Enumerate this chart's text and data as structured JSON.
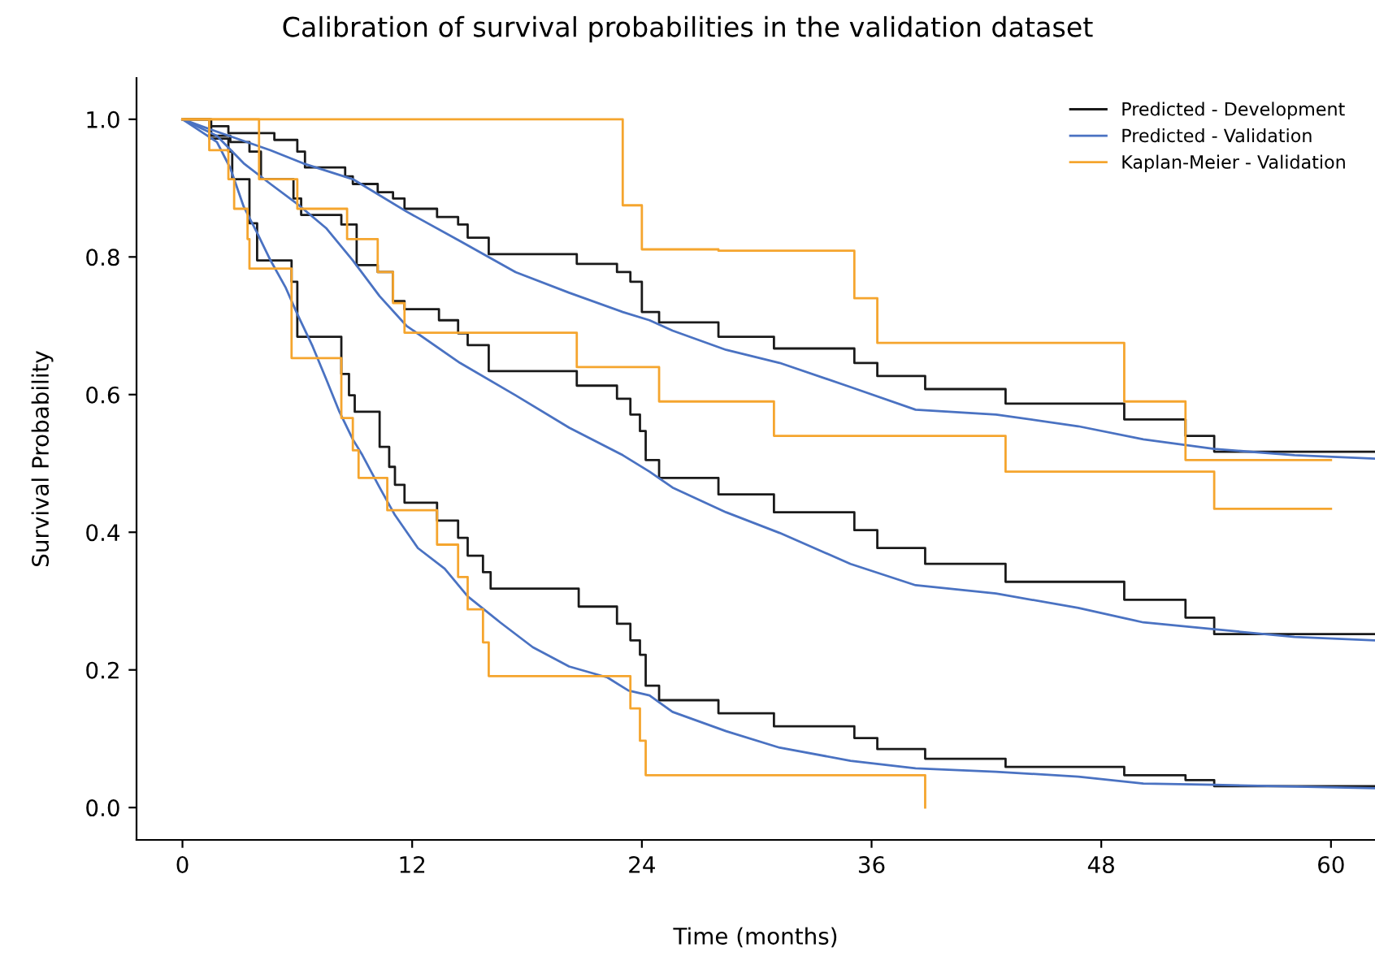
{
  "chart_data": {
    "type": "step",
    "title": "Calibration of survival probabilities in the validation dataset",
    "xlabel": "Time (months)",
    "ylabel": "Survival Probability",
    "xlim": [
      -2.4,
      62.3
    ],
    "ylim": [
      -0.047,
      1.06
    ],
    "xticks": [
      0,
      12,
      24,
      36,
      48,
      60
    ],
    "yticks": [
      {
        "value": 0,
        "label": "0.0"
      },
      {
        "value": 0.2,
        "label": "0.2"
      },
      {
        "value": 0.4,
        "label": "0.4"
      },
      {
        "value": 0.6,
        "label": "0.6"
      },
      {
        "value": 0.8,
        "label": "0.8"
      },
      {
        "value": 1,
        "label": "1.0"
      }
    ],
    "grid": false,
    "legend": "top right",
    "line_style": "solid",
    "marker": "none",
    "series": [
      {
        "name": "Predicted - Development",
        "color": "#1a1a1a",
        "x": [
          0,
          1.4,
          2.4,
          4.8,
          6.0,
          6.4,
          8.5,
          8.9,
          10.2,
          11.0,
          11.6,
          13.3,
          14.4,
          14.9,
          16.0,
          20.6,
          22.7,
          23.4,
          24.0,
          24.9,
          28.0,
          30.9,
          35.1,
          36.3,
          38.8,
          43.0,
          49.2,
          52.4,
          53.9,
          62.3
        ],
        "values": [
          1.0,
          0.99,
          0.98,
          0.97,
          0.953,
          0.93,
          0.917,
          0.906,
          0.894,
          0.885,
          0.87,
          0.858,
          0.847,
          0.828,
          0.804,
          0.79,
          0.778,
          0.764,
          0.72,
          0.705,
          0.684,
          0.667,
          0.646,
          0.627,
          0.608,
          0.587,
          0.564,
          0.54,
          0.517,
          0.517
        ]
      },
      {
        "color": "#1a1a1a",
        "x": [
          0,
          1.5,
          2.5,
          3.5,
          4.1,
          5.8,
          6.2,
          8.3,
          9.1,
          10.2,
          11.0,
          11.6,
          13.4,
          14.4,
          14.9,
          16.0,
          20.6,
          22.7,
          23.4,
          23.9,
          24.2,
          24.9,
          28.0,
          30.9,
          35.1,
          36.3,
          38.8,
          43.0,
          49.2,
          52.4,
          53.9,
          62.3
        ],
        "values": [
          1.0,
          0.976,
          0.967,
          0.953,
          0.913,
          0.885,
          0.861,
          0.847,
          0.788,
          0.778,
          0.736,
          0.724,
          0.708,
          0.689,
          0.672,
          0.634,
          0.613,
          0.594,
          0.571,
          0.547,
          0.505,
          0.479,
          0.455,
          0.429,
          0.403,
          0.377,
          0.354,
          0.328,
          0.302,
          0.276,
          0.252,
          0.252
        ]
      },
      {
        "color": "#1a1a1a",
        "x": [
          0,
          1.4,
          2.4,
          2.6,
          3.5,
          3.9,
          5.7,
          6.0,
          8.3,
          8.7,
          9.0,
          10.3,
          10.8,
          11.1,
          11.6,
          13.3,
          14.4,
          14.9,
          15.7,
          16.1,
          20.7,
          22.7,
          23.4,
          23.9,
          24.2,
          24.9,
          28.0,
          30.9,
          35.1,
          36.3,
          38.8,
          43.0,
          49.2,
          52.4,
          53.9,
          62.3
        ],
        "values": [
          1.0,
          0.972,
          0.953,
          0.913,
          0.849,
          0.795,
          0.764,
          0.684,
          0.63,
          0.599,
          0.575,
          0.524,
          0.495,
          0.469,
          0.443,
          0.417,
          0.392,
          0.366,
          0.342,
          0.318,
          0.292,
          0.267,
          0.243,
          0.222,
          0.177,
          0.156,
          0.137,
          0.118,
          0.101,
          0.085,
          0.071,
          0.059,
          0.047,
          0.04,
          0.031,
          0.031
        ]
      },
      {
        "name": "Predicted - Validation",
        "color": "#4a72c2",
        "type": "line",
        "x": [
          0,
          1.7,
          4.6,
          6.3,
          8.9,
          11.7,
          14.5,
          17.4,
          20.2,
          23.0,
          24.4,
          25.6,
          28.4,
          31.2,
          34.9,
          38.3,
          42.5,
          46.8,
          50.2,
          53.9,
          58.1,
          62.3
        ],
        "values": [
          1.0,
          0.983,
          0.955,
          0.936,
          0.913,
          0.866,
          0.823,
          0.778,
          0.748,
          0.72,
          0.708,
          0.693,
          0.665,
          0.646,
          0.611,
          0.578,
          0.571,
          0.554,
          0.535,
          0.521,
          0.512,
          0.507
        ]
      },
      {
        "color": "#4a72c2",
        "type": "line",
        "x": [
          0,
          1.8,
          3.2,
          4.6,
          6.0,
          7.5,
          8.9,
          10.3,
          11.7,
          14.5,
          17.4,
          20.2,
          23.0,
          24.4,
          25.6,
          28.4,
          31.2,
          34.9,
          38.3,
          42.5,
          46.8,
          50.2,
          53.9,
          58.1,
          62.3
        ],
        "values": [
          1.0,
          0.976,
          0.936,
          0.906,
          0.877,
          0.842,
          0.795,
          0.743,
          0.7,
          0.646,
          0.599,
          0.552,
          0.512,
          0.488,
          0.465,
          0.429,
          0.399,
          0.354,
          0.323,
          0.311,
          0.29,
          0.269,
          0.259,
          0.248,
          0.243
        ]
      },
      {
        "color": "#4a72c2",
        "type": "line",
        "x": [
          0,
          1.8,
          2.5,
          3.2,
          3.9,
          4.6,
          5.4,
          6.0,
          6.8,
          7.5,
          8.2,
          8.9,
          9.4,
          10.3,
          11.1,
          12.3,
          13.7,
          14.9,
          16.6,
          18.3,
          20.2,
          22.2,
          23.3,
          24.4,
          25.6,
          28.4,
          31.2,
          34.9,
          38.3,
          42.5,
          46.8,
          50.2,
          53.9,
          62.3
        ],
        "values": [
          1.0,
          0.967,
          0.929,
          0.873,
          0.835,
          0.795,
          0.755,
          0.717,
          0.67,
          0.623,
          0.575,
          0.535,
          0.512,
          0.465,
          0.425,
          0.377,
          0.347,
          0.307,
          0.269,
          0.233,
          0.205,
          0.189,
          0.17,
          0.163,
          0.139,
          0.111,
          0.087,
          0.068,
          0.057,
          0.052,
          0.045,
          0.035,
          0.033,
          0.028
        ]
      },
      {
        "name": "Kaplan-Meier - Validation",
        "color": "#f5a52e",
        "x": [
          0,
          23.0,
          24.0,
          28.0,
          35.1,
          36.3,
          49.2,
          52.4,
          60
        ],
        "values": [
          1.0,
          0.875,
          0.811,
          0.809,
          0.74,
          0.675,
          0.59,
          0.505,
          0.505
        ]
      },
      {
        "color": "#f5a52e",
        "x": [
          0,
          4.0,
          6.0,
          8.6,
          10.2,
          11.0,
          11.6,
          20.6,
          24.9,
          30.9,
          43.0,
          53.9,
          60
        ],
        "values": [
          1.0,
          0.913,
          0.87,
          0.826,
          0.778,
          0.733,
          0.69,
          0.64,
          0.59,
          0.54,
          0.488,
          0.434,
          0.434
        ]
      },
      {
        "color": "#f5a52e",
        "x": [
          0,
          1.4,
          2.4,
          2.7,
          3.4,
          3.5,
          5.7,
          8.3,
          8.9,
          9.2,
          10.7,
          13.3,
          14.4,
          14.9,
          15.7,
          16.0,
          23.4,
          23.9,
          24.2,
          38.8
        ],
        "values": [
          1.0,
          0.955,
          0.913,
          0.87,
          0.826,
          0.783,
          0.653,
          0.566,
          0.519,
          0.479,
          0.432,
          0.382,
          0.335,
          0.288,
          0.24,
          0.191,
          0.144,
          0.097,
          0.047,
          0.0
        ]
      }
    ]
  }
}
